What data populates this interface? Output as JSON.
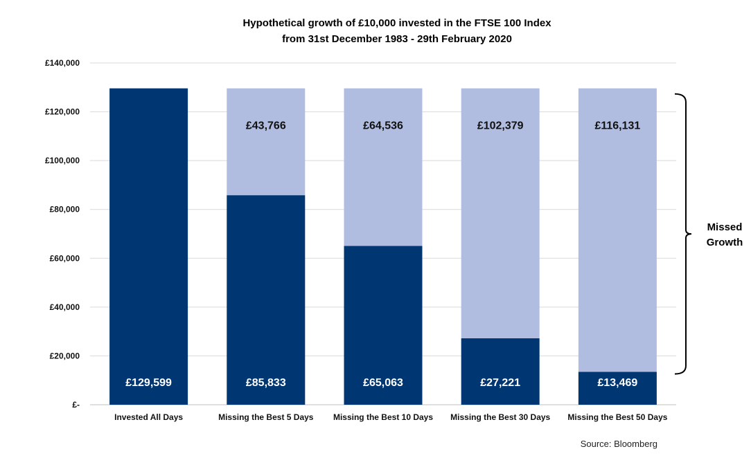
{
  "chart_data": {
    "type": "bar",
    "stacked": true,
    "title": "Hypothetical growth of £10,000 invested in the FTSE 100 Index",
    "subtitle": "from 31st December 1983 - 29th February 2020",
    "categories": [
      "Invested All Days",
      "Missing the Best 5 Days",
      "Missing the Best 10 Days",
      "Missing the Best 30 Days",
      "Missing the Best 50 Days"
    ],
    "series": [
      {
        "values": [
          129599,
          85833,
          65063,
          27221,
          13469
        ],
        "labels": [
          "£129,599",
          "£85,833",
          "£65,063",
          "£27,221",
          "£13,469"
        ],
        "color": "#003671"
      },
      {
        "values": [
          0,
          43766,
          64536,
          102379,
          116131
        ],
        "labels": [
          "",
          "£43,766",
          "£64,536",
          "£102,379",
          "£116,131"
        ],
        "color": "#b0bde0"
      }
    ],
    "ylim": [
      0,
      140000
    ],
    "yticks": [
      0,
      20000,
      40000,
      60000,
      80000,
      100000,
      120000,
      140000
    ],
    "ytick_labels": [
      "£-",
      "£20,000",
      "£40,000",
      "£60,000",
      "£80,000",
      "£100,000",
      "£120,000",
      "£140,000"
    ],
    "grid": true,
    "legend": "none",
    "annotation": {
      "line1": "Missed",
      "line2": "Growth"
    },
    "source": "Source: Bloomberg"
  }
}
